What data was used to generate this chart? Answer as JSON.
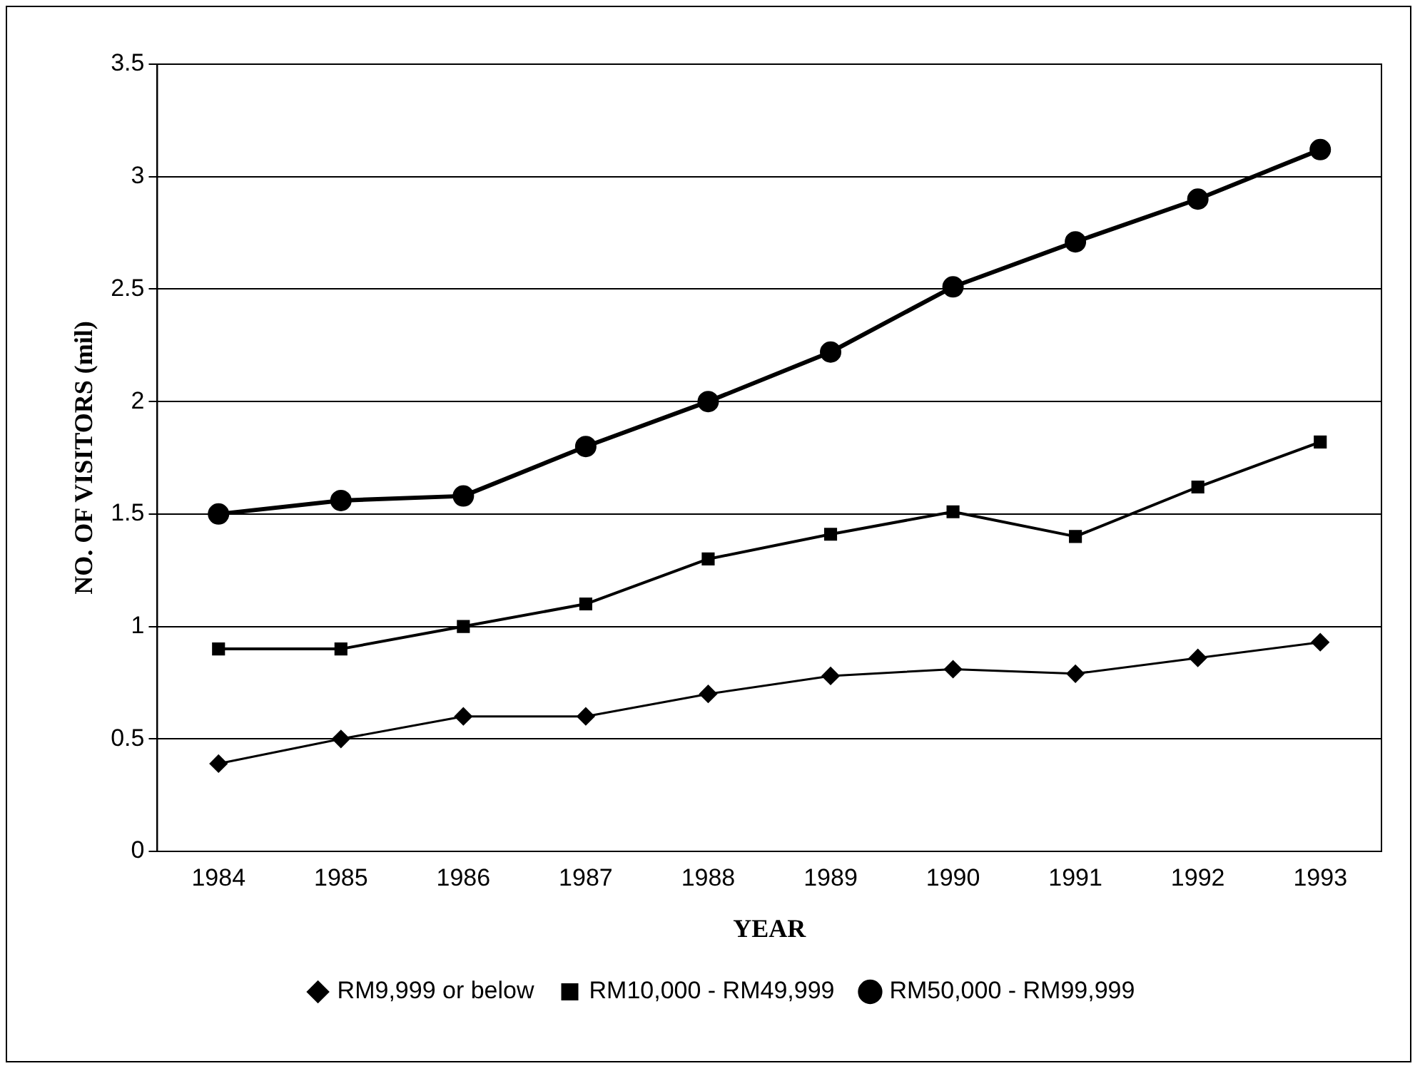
{
  "chart_data": {
    "type": "line",
    "xlabel": "YEAR",
    "ylabel": "NO. OF VISITORS (mil)",
    "categories": [
      "1984",
      "1985",
      "1986",
      "1987",
      "1988",
      "1989",
      "1990",
      "1991",
      "1992",
      "1993"
    ],
    "series": [
      {
        "name": "RM9,999 or below",
        "color": "#000000",
        "marker": "diamond",
        "values": [
          0.39,
          0.5,
          0.6,
          0.6,
          0.7,
          0.78,
          0.81,
          0.79,
          0.86,
          0.93
        ]
      },
      {
        "name": "RM10,000 - RM49,999",
        "color": "#000000",
        "marker": "square",
        "values": [
          0.9,
          0.9,
          1.0,
          1.1,
          1.3,
          1.41,
          1.51,
          1.4,
          1.62,
          1.82
        ]
      },
      {
        "name": "RM50,000 - RM99,999",
        "color": "#000000",
        "marker": "circle",
        "values": [
          1.5,
          1.56,
          1.58,
          1.8,
          2.0,
          2.22,
          2.51,
          2.71,
          2.9,
          3.12
        ]
      }
    ],
    "ylim": [
      0,
      3.5
    ],
    "yticks": [
      0,
      0.5,
      1,
      1.5,
      2,
      2.5,
      3,
      3.5
    ],
    "grid": "y",
    "legend": "bottom"
  }
}
